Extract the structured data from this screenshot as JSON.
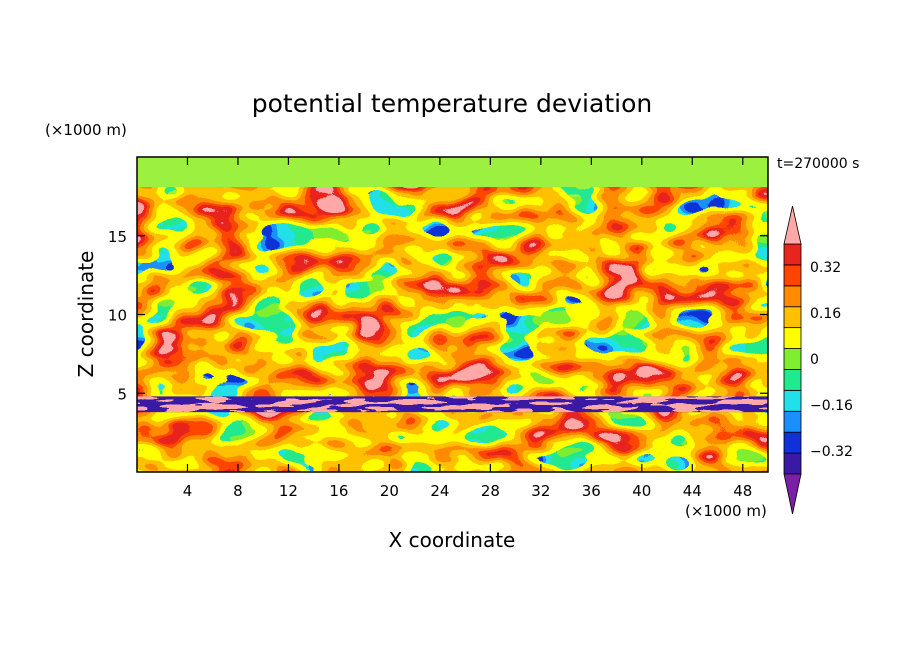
{
  "chart_data": {
    "type": "heatmap",
    "title": "potential temperature deviation",
    "xlabel": "X coordinate",
    "ylabel": "Z coordinate",
    "x_unit": "(×1000 m)",
    "y_unit": "(×1000 m)",
    "time_label": "t=270000 s",
    "xlim": [
      0,
      50
    ],
    "ylim": [
      0,
      20
    ],
    "x_ticks": [
      4,
      8,
      12,
      16,
      20,
      24,
      28,
      32,
      36,
      40,
      44,
      48
    ],
    "y_ticks": [
      5,
      10,
      15
    ],
    "colorbar": {
      "levels": [
        -0.48,
        -0.4,
        -0.32,
        -0.24,
        -0.16,
        -0.08,
        0,
        0.08,
        0.16,
        0.24,
        0.32,
        0.4,
        0.48
      ],
      "tick_labels": [
        "0.32",
        "0.16",
        "0",
        "−0.16",
        "−0.32"
      ],
      "tick_values": [
        0.32,
        0.16,
        0,
        -0.16,
        -0.32
      ],
      "colors": [
        "#7b1fa6",
        "#3a1aa5",
        "#1030d8",
        "#1a90ff",
        "#22e0e8",
        "#22e890",
        "#80ee30",
        "#ffff00",
        "#ffc000",
        "#ff8c00",
        "#ff4500",
        "#e8241e",
        "#ffa8a8"
      ],
      "extend": "both"
    }
  }
}
